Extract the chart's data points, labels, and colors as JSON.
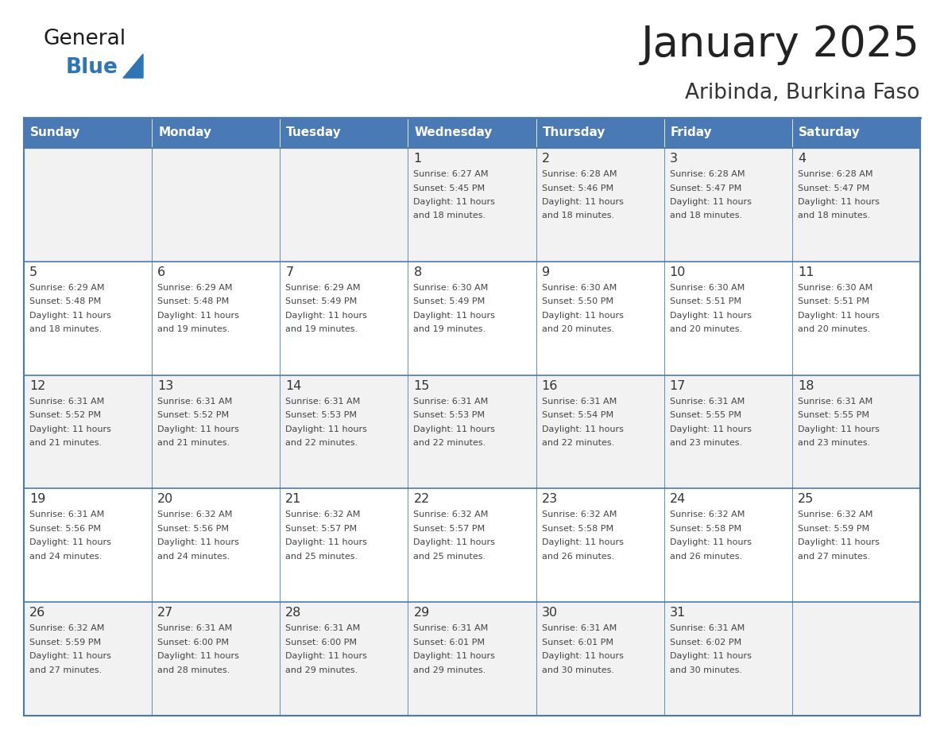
{
  "title": "January 2025",
  "subtitle": "Aribinda, Burkina Faso",
  "days_of_week": [
    "Sunday",
    "Monday",
    "Tuesday",
    "Wednesday",
    "Thursday",
    "Friday",
    "Saturday"
  ],
  "header_bg": "#4a7ab5",
  "header_text_color": "#FFFFFF",
  "cell_bg_odd": "#F2F2F2",
  "cell_bg_even": "#FFFFFF",
  "cell_border_color": "#4a7ab5",
  "day_number_color": "#333333",
  "cell_text_color": "#444444",
  "title_color": "#222222",
  "subtitle_color": "#333333",
  "blue_color": "#2E75B6",
  "logo_general_color": "#1a1a1a",
  "calendar": [
    [
      {
        "day": null,
        "sunrise": null,
        "sunset": null,
        "daylight": null
      },
      {
        "day": null,
        "sunrise": null,
        "sunset": null,
        "daylight": null
      },
      {
        "day": null,
        "sunrise": null,
        "sunset": null,
        "daylight": null
      },
      {
        "day": 1,
        "sunrise": "6:27 AM",
        "sunset": "5:45 PM",
        "daylight": "11 hours and 18 minutes."
      },
      {
        "day": 2,
        "sunrise": "6:28 AM",
        "sunset": "5:46 PM",
        "daylight": "11 hours and 18 minutes."
      },
      {
        "day": 3,
        "sunrise": "6:28 AM",
        "sunset": "5:47 PM",
        "daylight": "11 hours and 18 minutes."
      },
      {
        "day": 4,
        "sunrise": "6:28 AM",
        "sunset": "5:47 PM",
        "daylight": "11 hours and 18 minutes."
      }
    ],
    [
      {
        "day": 5,
        "sunrise": "6:29 AM",
        "sunset": "5:48 PM",
        "daylight": "11 hours and 18 minutes."
      },
      {
        "day": 6,
        "sunrise": "6:29 AM",
        "sunset": "5:48 PM",
        "daylight": "11 hours and 19 minutes."
      },
      {
        "day": 7,
        "sunrise": "6:29 AM",
        "sunset": "5:49 PM",
        "daylight": "11 hours and 19 minutes."
      },
      {
        "day": 8,
        "sunrise": "6:30 AM",
        "sunset": "5:49 PM",
        "daylight": "11 hours and 19 minutes."
      },
      {
        "day": 9,
        "sunrise": "6:30 AM",
        "sunset": "5:50 PM",
        "daylight": "11 hours and 20 minutes."
      },
      {
        "day": 10,
        "sunrise": "6:30 AM",
        "sunset": "5:51 PM",
        "daylight": "11 hours and 20 minutes."
      },
      {
        "day": 11,
        "sunrise": "6:30 AM",
        "sunset": "5:51 PM",
        "daylight": "11 hours and 20 minutes."
      }
    ],
    [
      {
        "day": 12,
        "sunrise": "6:31 AM",
        "sunset": "5:52 PM",
        "daylight": "11 hours and 21 minutes."
      },
      {
        "day": 13,
        "sunrise": "6:31 AM",
        "sunset": "5:52 PM",
        "daylight": "11 hours and 21 minutes."
      },
      {
        "day": 14,
        "sunrise": "6:31 AM",
        "sunset": "5:53 PM",
        "daylight": "11 hours and 22 minutes."
      },
      {
        "day": 15,
        "sunrise": "6:31 AM",
        "sunset": "5:53 PM",
        "daylight": "11 hours and 22 minutes."
      },
      {
        "day": 16,
        "sunrise": "6:31 AM",
        "sunset": "5:54 PM",
        "daylight": "11 hours and 22 minutes."
      },
      {
        "day": 17,
        "sunrise": "6:31 AM",
        "sunset": "5:55 PM",
        "daylight": "11 hours and 23 minutes."
      },
      {
        "day": 18,
        "sunrise": "6:31 AM",
        "sunset": "5:55 PM",
        "daylight": "11 hours and 23 minutes."
      }
    ],
    [
      {
        "day": 19,
        "sunrise": "6:31 AM",
        "sunset": "5:56 PM",
        "daylight": "11 hours and 24 minutes."
      },
      {
        "day": 20,
        "sunrise": "6:32 AM",
        "sunset": "5:56 PM",
        "daylight": "11 hours and 24 minutes."
      },
      {
        "day": 21,
        "sunrise": "6:32 AM",
        "sunset": "5:57 PM",
        "daylight": "11 hours and 25 minutes."
      },
      {
        "day": 22,
        "sunrise": "6:32 AM",
        "sunset": "5:57 PM",
        "daylight": "11 hours and 25 minutes."
      },
      {
        "day": 23,
        "sunrise": "6:32 AM",
        "sunset": "5:58 PM",
        "daylight": "11 hours and 26 minutes."
      },
      {
        "day": 24,
        "sunrise": "6:32 AM",
        "sunset": "5:58 PM",
        "daylight": "11 hours and 26 minutes."
      },
      {
        "day": 25,
        "sunrise": "6:32 AM",
        "sunset": "5:59 PM",
        "daylight": "11 hours and 27 minutes."
      }
    ],
    [
      {
        "day": 26,
        "sunrise": "6:32 AM",
        "sunset": "5:59 PM",
        "daylight": "11 hours and 27 minutes."
      },
      {
        "day": 27,
        "sunrise": "6:31 AM",
        "sunset": "6:00 PM",
        "daylight": "11 hours and 28 minutes."
      },
      {
        "day": 28,
        "sunrise": "6:31 AM",
        "sunset": "6:00 PM",
        "daylight": "11 hours and 29 minutes."
      },
      {
        "day": 29,
        "sunrise": "6:31 AM",
        "sunset": "6:01 PM",
        "daylight": "11 hours and 29 minutes."
      },
      {
        "day": 30,
        "sunrise": "6:31 AM",
        "sunset": "6:01 PM",
        "daylight": "11 hours and 30 minutes."
      },
      {
        "day": 31,
        "sunrise": "6:31 AM",
        "sunset": "6:02 PM",
        "daylight": "11 hours and 30 minutes."
      },
      {
        "day": null,
        "sunrise": null,
        "sunset": null,
        "daylight": null
      }
    ]
  ]
}
